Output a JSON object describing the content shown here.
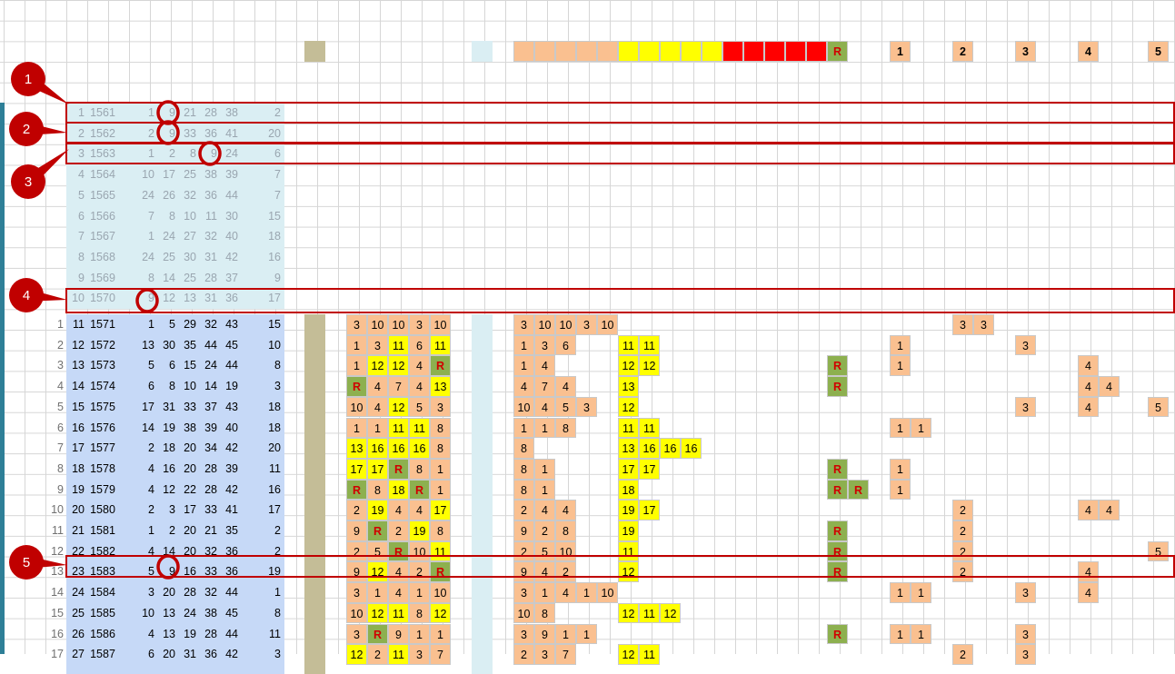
{
  "header_row": {
    "r_label": "R",
    "count_labels": [
      "1",
      "2",
      "3",
      "4",
      "5"
    ]
  },
  "colors": {
    "faded_block": "#daeef3",
    "data_block": "#c6d9f7",
    "khaki": "#c4bd97",
    "peach": "#fac090",
    "yellow": "#ffff00",
    "green": "#8db04f",
    "red": "#ff0000",
    "highlight": "#c00000"
  },
  "history_rows": [
    {
      "idx": "1",
      "draw": "1561",
      "nums": [
        "1",
        "9",
        "21",
        "28",
        "38"
      ],
      "bonus": "2"
    },
    {
      "idx": "2",
      "draw": "1562",
      "nums": [
        "2",
        "9",
        "33",
        "36",
        "41"
      ],
      "bonus": "20"
    },
    {
      "idx": "3",
      "draw": "1563",
      "nums": [
        "1",
        "2",
        "8",
        "9",
        "24"
      ],
      "bonus": "6"
    },
    {
      "idx": "4",
      "draw": "1564",
      "nums": [
        "10",
        "17",
        "25",
        "38",
        "39"
      ],
      "bonus": "7"
    },
    {
      "idx": "5",
      "draw": "1565",
      "nums": [
        "24",
        "26",
        "32",
        "36",
        "44"
      ],
      "bonus": "7"
    },
    {
      "idx": "6",
      "draw": "1566",
      "nums": [
        "7",
        "8",
        "10",
        "11",
        "30"
      ],
      "bonus": "15"
    },
    {
      "idx": "7",
      "draw": "1567",
      "nums": [
        "1",
        "24",
        "27",
        "32",
        "40"
      ],
      "bonus": "18"
    },
    {
      "idx": "8",
      "draw": "1568",
      "nums": [
        "24",
        "25",
        "30",
        "31",
        "42"
      ],
      "bonus": "16"
    },
    {
      "idx": "9",
      "draw": "1569",
      "nums": [
        "8",
        "14",
        "25",
        "28",
        "37"
      ],
      "bonus": "9"
    },
    {
      "idx": "10",
      "draw": "1570",
      "nums": [
        "9",
        "12",
        "13",
        "31",
        "36"
      ],
      "bonus": "17"
    }
  ],
  "data_rows": [
    {
      "row": "1",
      "idx": "11",
      "draw": "1571",
      "nums": [
        "1",
        "5",
        "29",
        "32",
        "43"
      ],
      "bonus": "15",
      "g1": [
        "3",
        "10",
        "10",
        "3",
        "10"
      ],
      "g2": [
        "3",
        "10",
        "10",
        "3",
        "10"
      ],
      "g3": [
        "",
        "",
        "",
        "",
        ""
      ],
      "r": [
        "",
        ""
      ],
      "c": [
        "",
        "",
        "3",
        "3",
        "",
        "",
        "",
        ""
      ]
    },
    {
      "row": "2",
      "idx": "12",
      "draw": "1572",
      "nums": [
        "13",
        "30",
        "35",
        "44",
        "45"
      ],
      "bonus": "10",
      "g1": [
        "1",
        "3",
        "11",
        "6",
        "11"
      ],
      "g2": [
        "1",
        "3",
        "6",
        "",
        ""
      ],
      "g3": [
        "11",
        "11",
        "",
        "",
        ""
      ],
      "r": [
        "",
        ""
      ],
      "c": [
        "1",
        "",
        "",
        "",
        "3",
        "",
        "",
        ""
      ]
    },
    {
      "row": "3",
      "idx": "13",
      "draw": "1573",
      "nums": [
        "5",
        "6",
        "15",
        "24",
        "44"
      ],
      "bonus": "8",
      "g1": [
        "1",
        "12",
        "12",
        "4",
        "R"
      ],
      "g2": [
        "1",
        "4",
        "",
        "",
        ""
      ],
      "g3": [
        "12",
        "12",
        "",
        "",
        ""
      ],
      "r": [
        "R",
        ""
      ],
      "c": [
        "1",
        "",
        "",
        "",
        "",
        "",
        "4",
        ""
      ]
    },
    {
      "row": "4",
      "idx": "14",
      "draw": "1574",
      "nums": [
        "6",
        "8",
        "10",
        "14",
        "19"
      ],
      "bonus": "3",
      "g1": [
        "R",
        "4",
        "7",
        "4",
        "13"
      ],
      "g2": [
        "4",
        "7",
        "4",
        "",
        ""
      ],
      "g3": [
        "13",
        "",
        "",
        "",
        ""
      ],
      "r": [
        "R",
        ""
      ],
      "c": [
        "",
        "",
        "",
        "",
        "",
        "",
        "4",
        "4"
      ]
    },
    {
      "row": "5",
      "idx": "15",
      "draw": "1575",
      "nums": [
        "17",
        "31",
        "33",
        "37",
        "43"
      ],
      "bonus": "18",
      "g1": [
        "10",
        "4",
        "12",
        "5",
        "3"
      ],
      "g2": [
        "10",
        "4",
        "5",
        "3",
        ""
      ],
      "g3": [
        "12",
        "",
        "",
        "",
        ""
      ],
      "r": [
        "",
        ""
      ],
      "c": [
        "",
        "",
        "",
        "",
        "3",
        "",
        "4",
        "5"
      ]
    },
    {
      "row": "6",
      "idx": "16",
      "draw": "1576",
      "nums": [
        "14",
        "19",
        "38",
        "39",
        "40"
      ],
      "bonus": "18",
      "g1": [
        "1",
        "1",
        "11",
        "11",
        "8"
      ],
      "g2": [
        "1",
        "1",
        "8",
        "",
        ""
      ],
      "g3": [
        "11",
        "11",
        "",
        "",
        ""
      ],
      "r": [
        "",
        ""
      ],
      "c": [
        "1",
        "1",
        "",
        "",
        "",
        "",
        "",
        ""
      ]
    },
    {
      "row": "7",
      "idx": "17",
      "draw": "1577",
      "nums": [
        "2",
        "18",
        "20",
        "34",
        "42"
      ],
      "bonus": "20",
      "g1": [
        "13",
        "16",
        "16",
        "16",
        "8"
      ],
      "g2": [
        "8",
        "",
        "",
        "",
        ""
      ],
      "g3": [
        "13",
        "16",
        "16",
        "16",
        ""
      ],
      "r": [
        "",
        ""
      ],
      "c": [
        "",
        "",
        "",
        "",
        "",
        "",
        "",
        ""
      ]
    },
    {
      "row": "8",
      "idx": "18",
      "draw": "1578",
      "nums": [
        "4",
        "16",
        "20",
        "28",
        "39"
      ],
      "bonus": "11",
      "g1": [
        "17",
        "17",
        "R",
        "8",
        "1"
      ],
      "g2": [
        "8",
        "1",
        "",
        "",
        ""
      ],
      "g3": [
        "17",
        "17",
        "",
        "",
        ""
      ],
      "r": [
        "R",
        ""
      ],
      "c": [
        "1",
        "",
        "",
        "",
        "",
        "",
        "",
        ""
      ]
    },
    {
      "row": "9",
      "idx": "19",
      "draw": "1579",
      "nums": [
        "4",
        "12",
        "22",
        "28",
        "42"
      ],
      "bonus": "16",
      "g1": [
        "R",
        "8",
        "18",
        "R",
        "1"
      ],
      "g2": [
        "8",
        "1",
        "",
        "",
        ""
      ],
      "g3": [
        "18",
        "",
        "",
        "",
        ""
      ],
      "r": [
        "R",
        "R"
      ],
      "c": [
        "1",
        "",
        "",
        "",
        "",
        "",
        "",
        ""
      ]
    },
    {
      "row": "10",
      "idx": "20",
      "draw": "1580",
      "nums": [
        "2",
        "3",
        "17",
        "33",
        "41"
      ],
      "bonus": "17",
      "g1": [
        "2",
        "19",
        "4",
        "4",
        "17"
      ],
      "g2": [
        "2",
        "4",
        "4",
        "",
        ""
      ],
      "g3": [
        "19",
        "17",
        "",
        "",
        ""
      ],
      "r": [
        "",
        ""
      ],
      "c": [
        "",
        "",
        "2",
        "",
        "",
        "",
        "4",
        "4"
      ]
    },
    {
      "row": "11",
      "idx": "21",
      "draw": "1581",
      "nums": [
        "1",
        "2",
        "20",
        "21",
        "35"
      ],
      "bonus": "2",
      "g1": [
        "9",
        "R",
        "2",
        "19",
        "8"
      ],
      "g2": [
        "9",
        "2",
        "8",
        "",
        ""
      ],
      "g3": [
        "19",
        "",
        "",
        "",
        ""
      ],
      "r": [
        "R",
        ""
      ],
      "c": [
        "",
        "",
        "2",
        "",
        "",
        "",
        "",
        ""
      ]
    },
    {
      "row": "12",
      "idx": "22",
      "draw": "1582",
      "nums": [
        "4",
        "14",
        "20",
        "32",
        "36"
      ],
      "bonus": "2",
      "g1": [
        "2",
        "5",
        "R",
        "10",
        "11"
      ],
      "g2": [
        "2",
        "5",
        "10",
        "",
        ""
      ],
      "g3": [
        "11",
        "",
        "",
        "",
        ""
      ],
      "r": [
        "R",
        ""
      ],
      "c": [
        "",
        "",
        "2",
        "",
        "",
        "",
        "",
        "5"
      ]
    },
    {
      "row": "13",
      "idx": "23",
      "draw": "1583",
      "nums": [
        "5",
        "9",
        "16",
        "33",
        "36"
      ],
      "bonus": "19",
      "g1": [
        "9",
        "12",
        "4",
        "2",
        "R"
      ],
      "g2": [
        "9",
        "4",
        "2",
        "",
        ""
      ],
      "g3": [
        "12",
        "",
        "",
        "",
        ""
      ],
      "r": [
        "R",
        ""
      ],
      "c": [
        "",
        "",
        "2",
        "",
        "",
        "",
        "4",
        ""
      ]
    },
    {
      "row": "14",
      "idx": "24",
      "draw": "1584",
      "nums": [
        "3",
        "20",
        "28",
        "32",
        "44"
      ],
      "bonus": "1",
      "g1": [
        "3",
        "1",
        "4",
        "1",
        "10"
      ],
      "g2": [
        "3",
        "1",
        "4",
        "1",
        "10"
      ],
      "g3": [
        "",
        "",
        "",
        "",
        ""
      ],
      "r": [
        "",
        ""
      ],
      "c": [
        "1",
        "1",
        "",
        "",
        "3",
        "",
        "4",
        ""
      ]
    },
    {
      "row": "15",
      "idx": "25",
      "draw": "1585",
      "nums": [
        "10",
        "13",
        "24",
        "38",
        "45"
      ],
      "bonus": "8",
      "g1": [
        "10",
        "12",
        "11",
        "8",
        "12"
      ],
      "g2": [
        "10",
        "8",
        "",
        "",
        ""
      ],
      "g3": [
        "12",
        "11",
        "12",
        "",
        ""
      ],
      "r": [
        "",
        ""
      ],
      "c": [
        "",
        "",
        "",
        "",
        "",
        "",
        "",
        ""
      ]
    },
    {
      "row": "16",
      "idx": "26",
      "draw": "1586",
      "nums": [
        "4",
        "13",
        "19",
        "28",
        "44"
      ],
      "bonus": "11",
      "g1": [
        "3",
        "R",
        "9",
        "1",
        "1"
      ],
      "g2": [
        "3",
        "9",
        "1",
        "1",
        ""
      ],
      "g3": [
        "",
        "",
        "",
        "",
        ""
      ],
      "r": [
        "R",
        ""
      ],
      "c": [
        "1",
        "1",
        "",
        "",
        "3",
        "",
        "",
        ""
      ]
    },
    {
      "row": "17",
      "idx": "27",
      "draw": "1587",
      "nums": [
        "6",
        "20",
        "31",
        "36",
        "42"
      ],
      "bonus": "3",
      "g1": [
        "12",
        "2",
        "11",
        "3",
        "7"
      ],
      "g2": [
        "2",
        "3",
        "7",
        "",
        ""
      ],
      "g3": [
        "12",
        "11",
        "",
        "",
        ""
      ],
      "r": [
        "",
        ""
      ],
      "c": [
        "",
        "",
        "2",
        "",
        "3",
        "",
        "",
        ""
      ]
    }
  ],
  "callouts": [
    "1",
    "2",
    "3",
    "4",
    "5"
  ]
}
